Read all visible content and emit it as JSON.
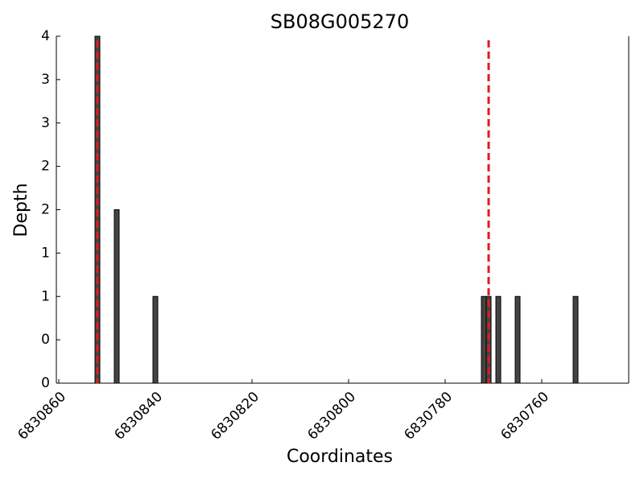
{
  "chart_data": {
    "type": "bar",
    "title": "SB08G005270",
    "x_label": "Coordinates",
    "y_label": "Depth",
    "x": [
      6830852,
      6830848,
      6830840,
      6830772,
      6830771,
      6830769,
      6830765,
      6830753
    ],
    "values": [
      4,
      2,
      1,
      1,
      1,
      1,
      1,
      1
    ],
    "color": "#444444",
    "xlim": [
      6830860.5,
      6830742
    ],
    "xticks": [
      6830860,
      6830840,
      6830820,
      6830800,
      6830780,
      6830760
    ],
    "ylim": [
      0,
      4
    ],
    "yticks": [
      0,
      {
        "value": 0.5,
        "label": "0"
      },
      1,
      {
        "value": 1.5,
        "label": "1"
      },
      2,
      {
        "value": 2.5,
        "label": "2"
      },
      3,
      {
        "value": 3.5,
        "label": "3"
      },
      4
    ],
    "vlines": [
      6830852,
      6830771
    ],
    "vline_color": "#e31a1c"
  }
}
